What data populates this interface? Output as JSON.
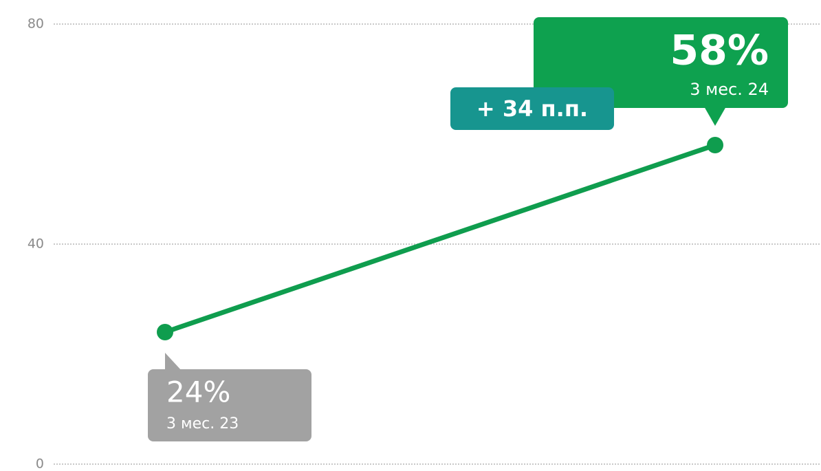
{
  "chart_data": {
    "type": "line",
    "categories": [
      "3 мес. 23",
      "3 мес. 24"
    ],
    "values": [
      24,
      58
    ],
    "value_labels": [
      "24%",
      "58%"
    ],
    "color": "#0f9d4e",
    "label_colors": [
      "#a2a2a2",
      "#0ea14f"
    ],
    "annotation": "+ 34 п.п.",
    "annotation_color": "#17958f",
    "ylim": [
      0,
      80
    ],
    "yticks": [
      0,
      40,
      80
    ],
    "grid": true
  }
}
